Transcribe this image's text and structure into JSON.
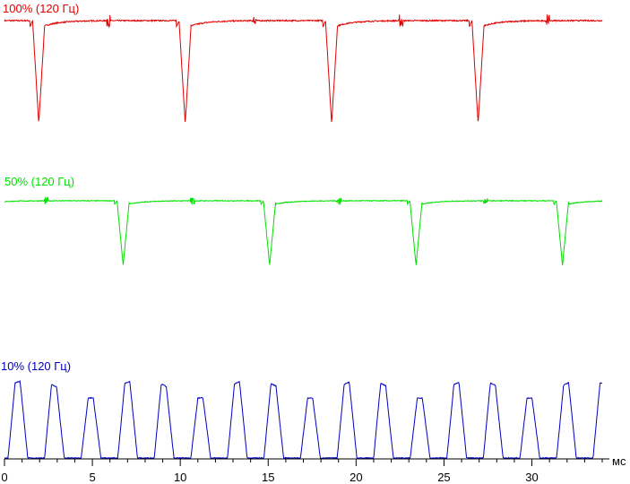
{
  "chart_data": {
    "type": "line",
    "title": "",
    "xlabel": "мс",
    "ylabel": "",
    "xlim": [
      0,
      34
    ],
    "x_ticks": [
      0,
      5,
      10,
      15,
      20,
      25,
      30
    ],
    "grid": false,
    "legend": "none",
    "series": [
      {
        "name": "100% (120 Гц)",
        "color": "#e00000",
        "shape": "dips",
        "period_ms": 8.33,
        "first_dip_ms": 1.6,
        "baseline": 1.0,
        "dip_min": 0.0
      },
      {
        "name": "50% (120 Гц)",
        "color": "#00e000",
        "shape": "dips",
        "period_ms": 8.33,
        "first_dip_ms": 6.4,
        "baseline": 1.0,
        "dip_min": 0.0
      },
      {
        "name": "10% (120 Гц)",
        "color": "#0000c0",
        "shape": "pulses",
        "period_ms": 2.08,
        "first_pulse_ms": 0.2,
        "on_fraction": 0.55,
        "baseline": 0.0,
        "peak": 1.0
      }
    ]
  }
}
